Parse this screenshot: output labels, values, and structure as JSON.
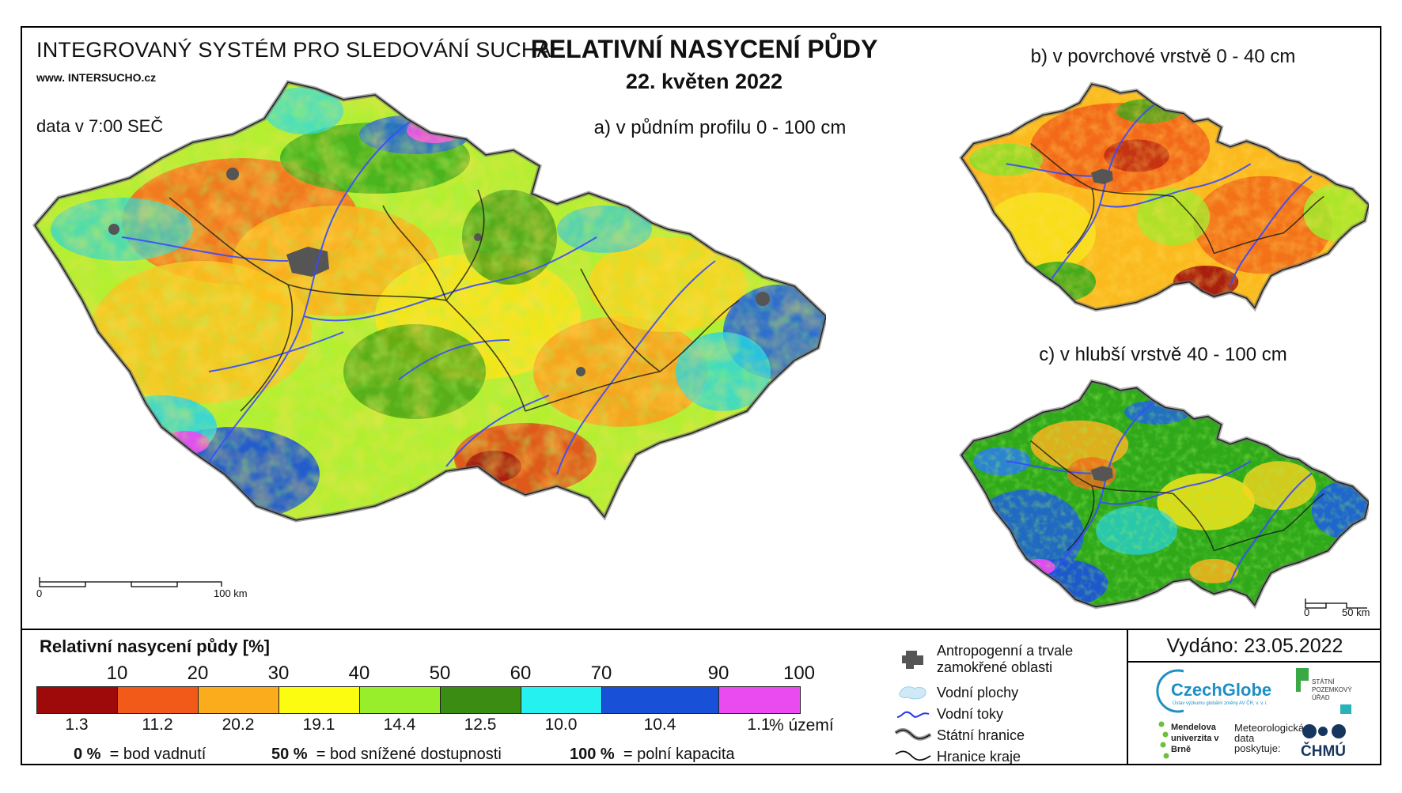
{
  "header": {
    "system_title": "INTEGROVANÝ SYSTÉM PRO SLEDOVÁNÍ SUCHA",
    "website": "www. INTERSUCHO.cz",
    "data_time": "data v 7:00 SEČ",
    "main_title": "RELATIVNÍ NASYCENÍ PŮDY",
    "date": "22. květen 2022"
  },
  "maps": {
    "a_title": "a) v půdním profilu 0 - 100 cm",
    "b_title": "b) v povrchové vrstvě 0 - 40 cm",
    "c_title": "c) v hlubší vrstvě 40 - 100 cm",
    "scale_a": {
      "start": "0",
      "end": "100 km"
    },
    "scale_c": {
      "start": "0",
      "end": "50 km"
    }
  },
  "legend": {
    "title": "Relativní nasycení půdy [%]",
    "class_bounds": [
      "10",
      "20",
      "30",
      "40",
      "50",
      "60",
      "70",
      "90",
      "100"
    ],
    "classes": [
      {
        "color": "#9e0a0a",
        "share": "1.3"
      },
      {
        "color": "#f25a1a",
        "share": "11.2"
      },
      {
        "color": "#fbac1d",
        "share": "20.2"
      },
      {
        "color": "#fcfc10",
        "share": "19.1"
      },
      {
        "color": "#98ee2a",
        "share": "14.4"
      },
      {
        "color": "#3a8c12",
        "share": "12.5"
      },
      {
        "color": "#25f1f1",
        "share": "10.0"
      },
      {
        "color": "#1850d8",
        "share": "10.4"
      },
      {
        "color": "#e94bf0",
        "share": "1.1"
      }
    ],
    "share_unit": "% území",
    "notes": [
      {
        "value": "0 %",
        "text": "= bod vadnutí"
      },
      {
        "value": "50 %",
        "text": "= bod snížené dostupnosti"
      },
      {
        "value": "100 %",
        "text": "= polní kapacita"
      }
    ]
  },
  "map_legend": {
    "items": [
      {
        "label": "Antropogenní a trvale zamokřené oblasti",
        "icon": "urban-area-icon"
      },
      {
        "label": "Vodní plochy",
        "icon": "water-body-icon"
      },
      {
        "label": "Vodní toky",
        "icon": "river-icon"
      },
      {
        "label": "Státní hranice",
        "icon": "state-border-icon"
      },
      {
        "label": "Hranice kraje",
        "icon": "region-border-icon"
      }
    ]
  },
  "footer": {
    "issued": "Vydáno: 23.05.2022",
    "czechglobe": "CzechGlobe",
    "czechglobe_sub": "Ústav výzkumu globální změny AV ČR, v. v. i.",
    "spu": "STÁTNÍ POZEMKOVÝ ÚŘAD",
    "mendel": "Mendelova univerzita v Brně",
    "chmu_intro": "Meteorologická data poskytuje:",
    "chmu": "ČHMÚ"
  },
  "colors": {
    "river": "#3a4bff",
    "border": "#222222",
    "urban": "#555555"
  }
}
